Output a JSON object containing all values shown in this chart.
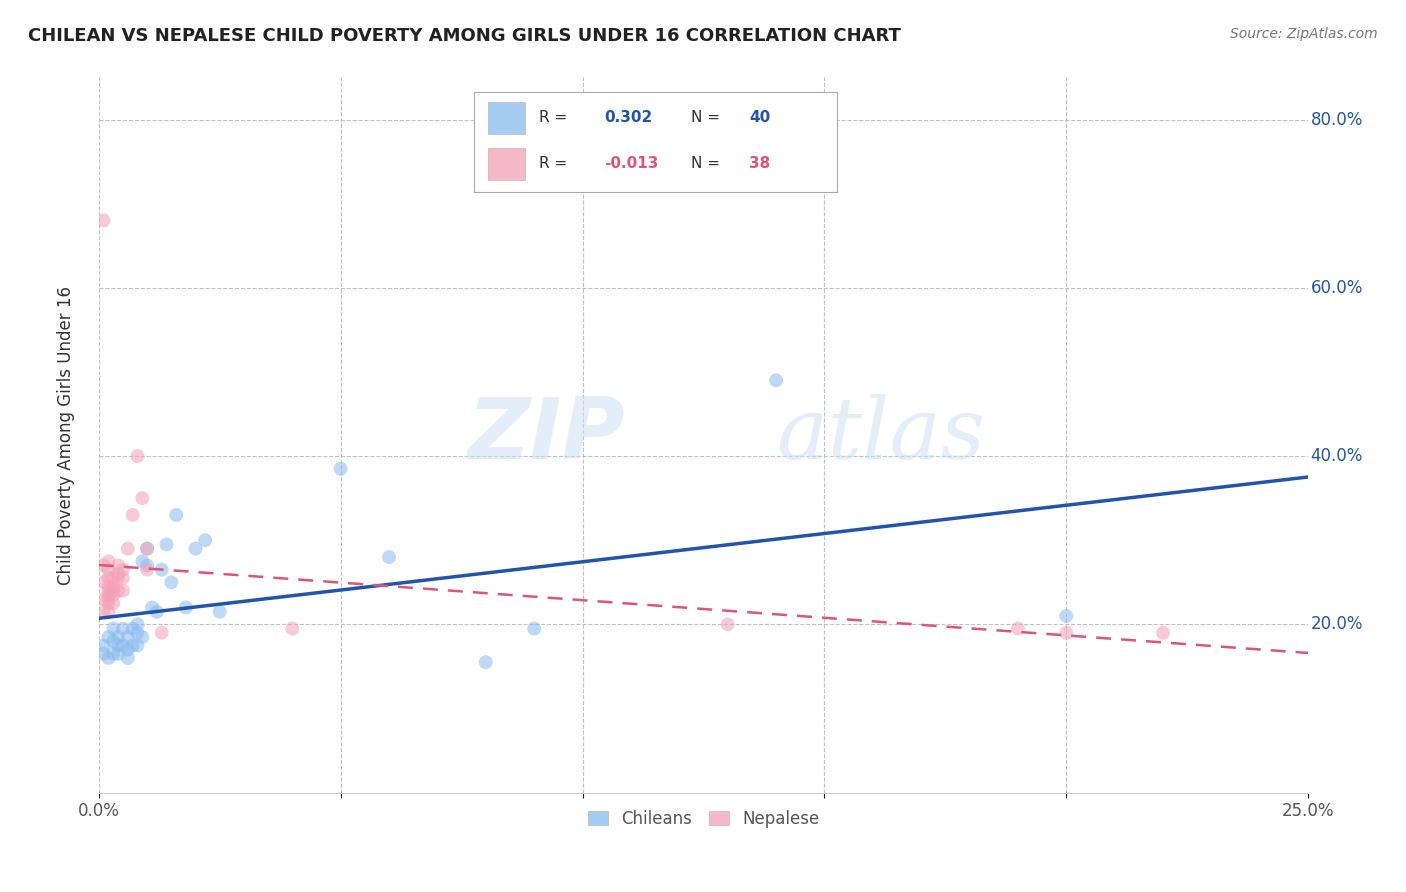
{
  "title": "CHILEAN VS NEPALESE CHILD POVERTY AMONG GIRLS UNDER 16 CORRELATION CHART",
  "source": "Source: ZipAtlas.com",
  "ylabel": "Child Poverty Among Girls Under 16",
  "xlim": [
    0.0,
    0.25
  ],
  "ylim": [
    0.0,
    0.85
  ],
  "xticks": [
    0.0,
    0.05,
    0.1,
    0.15,
    0.2,
    0.25
  ],
  "xtick_labels": [
    "0.0%",
    "",
    "",
    "",
    "",
    "25.0%"
  ],
  "yticks": [
    0.2,
    0.4,
    0.6,
    0.8
  ],
  "ytick_labels": [
    "20.0%",
    "40.0%",
    "60.0%",
    "80.0%"
  ],
  "legend_labels_bottom": [
    "Chileans",
    "Nepalese"
  ],
  "chileans_color": "#88bbee",
  "nepalese_color": "#f4a0b8",
  "chileans_line_color": "#2255aa",
  "nepalese_line_color": "#dd5577",
  "marker_size": 100,
  "marker_alpha": 0.55,
  "watermark_zip": "ZIP",
  "watermark_atlas": "atlas",
  "background_color": "#ffffff",
  "grid_color": "#bbbbbb",
  "legend_r1": "R =  0.302",
  "legend_n1": "N = 40",
  "legend_r2": "R = -0.013",
  "legend_n2": "N = 38",
  "chileans_x": [
    0.001,
    0.001,
    0.002,
    0.002,
    0.003,
    0.003,
    0.003,
    0.004,
    0.004,
    0.004,
    0.005,
    0.005,
    0.006,
    0.006,
    0.006,
    0.007,
    0.007,
    0.008,
    0.008,
    0.008,
    0.009,
    0.009,
    0.01,
    0.01,
    0.011,
    0.012,
    0.013,
    0.014,
    0.015,
    0.016,
    0.018,
    0.02,
    0.022,
    0.025,
    0.05,
    0.06,
    0.08,
    0.09,
    0.14,
    0.2
  ],
  "chileans_y": [
    0.175,
    0.165,
    0.16,
    0.185,
    0.165,
    0.18,
    0.195,
    0.175,
    0.165,
    0.185,
    0.175,
    0.195,
    0.17,
    0.185,
    0.16,
    0.175,
    0.195,
    0.175,
    0.19,
    0.2,
    0.185,
    0.275,
    0.27,
    0.29,
    0.22,
    0.215,
    0.265,
    0.295,
    0.25,
    0.33,
    0.22,
    0.29,
    0.3,
    0.215,
    0.385,
    0.28,
    0.155,
    0.195,
    0.49,
    0.21
  ],
  "nepalese_x": [
    0.001,
    0.001,
    0.001,
    0.001,
    0.001,
    0.002,
    0.002,
    0.002,
    0.002,
    0.002,
    0.002,
    0.002,
    0.002,
    0.002,
    0.003,
    0.003,
    0.003,
    0.003,
    0.003,
    0.004,
    0.004,
    0.004,
    0.004,
    0.005,
    0.005,
    0.005,
    0.006,
    0.007,
    0.008,
    0.009,
    0.01,
    0.01,
    0.013,
    0.04,
    0.13,
    0.19,
    0.2,
    0.22
  ],
  "nepalese_y": [
    0.68,
    0.27,
    0.25,
    0.23,
    0.215,
    0.275,
    0.265,
    0.255,
    0.245,
    0.24,
    0.235,
    0.23,
    0.225,
    0.215,
    0.255,
    0.245,
    0.24,
    0.235,
    0.225,
    0.27,
    0.26,
    0.255,
    0.24,
    0.265,
    0.255,
    0.24,
    0.29,
    0.33,
    0.4,
    0.35,
    0.29,
    0.265,
    0.19,
    0.195,
    0.2,
    0.195,
    0.19,
    0.19
  ]
}
